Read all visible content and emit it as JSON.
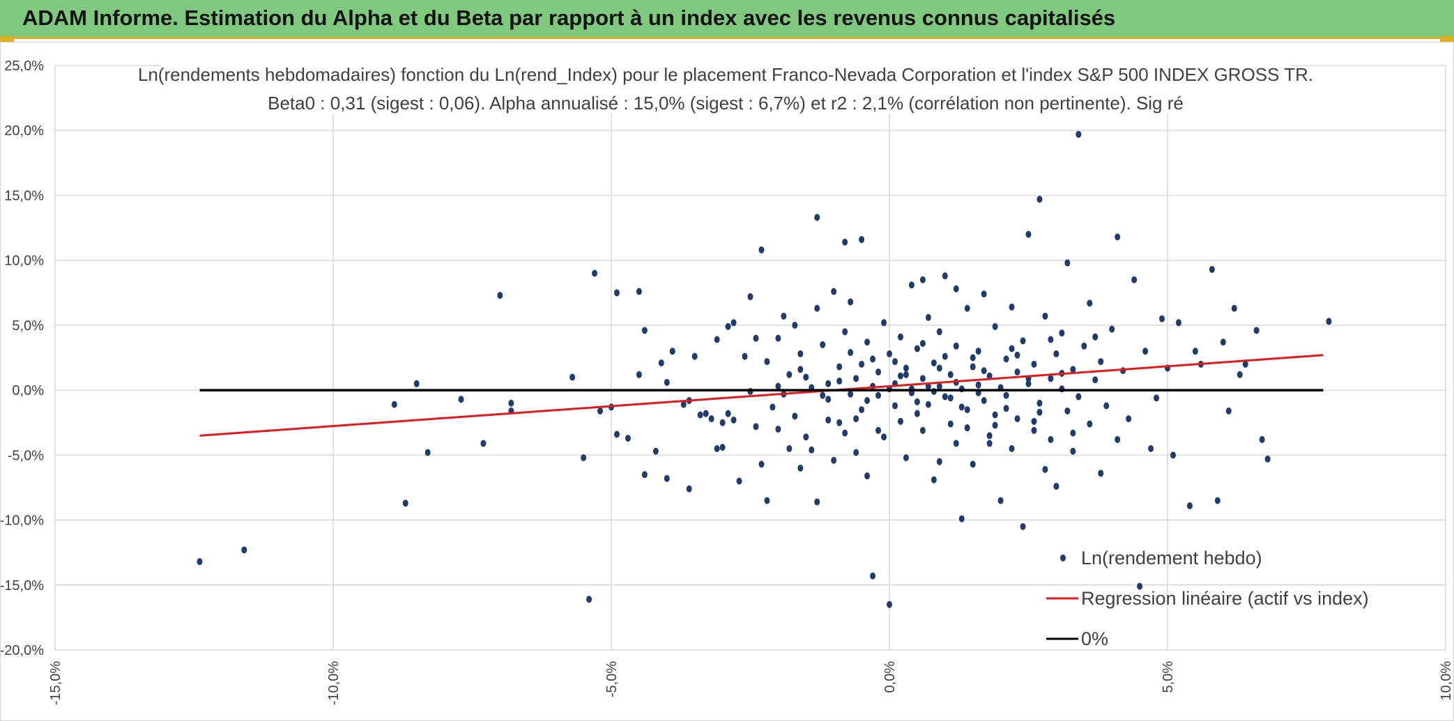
{
  "header": {
    "title": "ADAM Informe. Estimation du Alpha et du Beta par rapport à un index avec les revenus connus capitalisés"
  },
  "colors": {
    "header_bg": "#7ec97e",
    "accent": "#e0b020",
    "points": "#1f3c6e",
    "regression": "#e31a1c",
    "zero_line": "#000000",
    "grid": "#d9d9d9"
  },
  "chart_data": {
    "type": "scatter",
    "title": "Ln(rendements hebdomadaires) fonction du Ln(rend_Index) pour le placement Franco-Nevada Corporation et l'index S&P 500 INDEX GROSS TR.",
    "subtitle": "Beta0 : 0,31 (sigest : 0,06). Alpha annualisé : 15,0% (sigest : 6,7%) et r2 : 2,1% (corrélation non pertinente). Sig ré",
    "xlim": [
      -0.15,
      0.1
    ],
    "ylim": [
      -0.2,
      0.25
    ],
    "x_ticks": [
      -0.15,
      -0.1,
      -0.05,
      0.0,
      0.05,
      0.1
    ],
    "y_ticks": [
      -0.2,
      -0.15,
      -0.1,
      -0.05,
      0.0,
      0.05,
      0.1,
      0.15,
      0.2,
      0.25
    ],
    "x_tick_labels": [
      "-15,0%",
      "-10,0%",
      "-5,0%",
      "0,0%",
      "5,0%",
      "10,0%"
    ],
    "y_tick_labels": [
      "-20,0%",
      "-15,0%",
      "-10,0%",
      "-5,0%",
      "0,0%",
      "5,0%",
      "10,0%",
      "15,0%",
      "20,0%",
      "25,0%"
    ],
    "grid": true,
    "legend_position": "bottom-right",
    "series": [
      {
        "name": "Ln(rendement hebdo)",
        "kind": "points",
        "color": "#1f3c6e",
        "points": [
          [
            -0.124,
            -0.132
          ],
          [
            -0.116,
            -0.123
          ],
          [
            -0.087,
            -0.087
          ],
          [
            -0.089,
            -0.011
          ],
          [
            -0.085,
            0.005
          ],
          [
            -0.083,
            -0.048
          ],
          [
            -0.077,
            -0.007
          ],
          [
            -0.073,
            -0.041
          ],
          [
            -0.07,
            0.073
          ],
          [
            -0.068,
            -0.01
          ],
          [
            -0.068,
            -0.016
          ],
          [
            -0.057,
            0.01
          ],
          [
            -0.055,
            -0.052
          ],
          [
            -0.054,
            -0.161
          ],
          [
            -0.053,
            0.09
          ],
          [
            -0.052,
            -0.016
          ],
          [
            -0.05,
            -0.013
          ],
          [
            -0.049,
            0.075
          ],
          [
            -0.049,
            -0.034
          ],
          [
            -0.047,
            -0.037
          ],
          [
            -0.045,
            0.076
          ],
          [
            -0.045,
            0.012
          ],
          [
            -0.044,
            0.046
          ],
          [
            -0.044,
            -0.065
          ],
          [
            -0.042,
            -0.047
          ],
          [
            -0.041,
            0.021
          ],
          [
            -0.04,
            0.006
          ],
          [
            -0.04,
            -0.068
          ],
          [
            -0.039,
            0.03
          ],
          [
            -0.037,
            -0.011
          ],
          [
            -0.036,
            -0.008
          ],
          [
            -0.036,
            -0.076
          ],
          [
            -0.035,
            0.026
          ],
          [
            -0.034,
            -0.019
          ],
          [
            -0.033,
            -0.018
          ],
          [
            -0.032,
            -0.022
          ],
          [
            -0.031,
            0.039
          ],
          [
            -0.031,
            -0.045
          ],
          [
            -0.03,
            -0.044
          ],
          [
            -0.03,
            -0.025
          ],
          [
            -0.029,
            0.049
          ],
          [
            -0.029,
            -0.018
          ],
          [
            -0.028,
            0.052
          ],
          [
            -0.028,
            -0.023
          ],
          [
            -0.027,
            -0.07
          ],
          [
            -0.026,
            0.026
          ],
          [
            -0.025,
            -0.001
          ],
          [
            -0.025,
            0.072
          ],
          [
            -0.024,
            0.04
          ],
          [
            -0.024,
            -0.028
          ],
          [
            -0.023,
            0.108
          ],
          [
            -0.023,
            -0.057
          ],
          [
            -0.022,
            0.022
          ],
          [
            -0.022,
            -0.085
          ],
          [
            -0.021,
            -0.013
          ],
          [
            -0.02,
            0.003
          ],
          [
            -0.02,
            0.04
          ],
          [
            -0.02,
            -0.03
          ],
          [
            -0.019,
            -0.003
          ],
          [
            -0.018,
            0.012
          ],
          [
            -0.018,
            -0.045
          ],
          [
            -0.017,
            0.05
          ],
          [
            -0.017,
            -0.02
          ],
          [
            -0.016,
            0.028
          ],
          [
            -0.016,
            -0.06
          ],
          [
            -0.015,
            0.01
          ],
          [
            -0.015,
            -0.036
          ],
          [
            -0.014,
            0.002
          ],
          [
            -0.014,
            -0.046
          ],
          [
            -0.013,
            0.063
          ],
          [
            -0.013,
            0.133
          ],
          [
            -0.013,
            -0.086
          ],
          [
            -0.012,
            -0.004
          ],
          [
            -0.012,
            0.035
          ],
          [
            -0.011,
            -0.007
          ],
          [
            -0.011,
            0.005
          ],
          [
            -0.01,
            0.076
          ],
          [
            -0.01,
            -0.054
          ],
          [
            -0.009,
            0.018
          ],
          [
            -0.009,
            -0.025
          ],
          [
            -0.008,
            0.045
          ],
          [
            -0.008,
            -0.033
          ],
          [
            -0.007,
            -0.003
          ],
          [
            -0.007,
            0.068
          ],
          [
            -0.006,
            0.009
          ],
          [
            -0.006,
            -0.048
          ],
          [
            -0.005,
            0.02
          ],
          [
            -0.005,
            -0.015
          ],
          [
            -0.004,
            0.037
          ],
          [
            -0.004,
            -0.066
          ],
          [
            -0.003,
            0.003
          ],
          [
            -0.003,
            -0.143
          ],
          [
            -0.002,
            0.014
          ],
          [
            -0.002,
            -0.004
          ],
          [
            -0.001,
            0.052
          ],
          [
            -0.001,
            -0.036
          ],
          [
            0.0,
            0.001
          ],
          [
            0.0,
            -0.165
          ],
          [
            0.0,
            0.028
          ],
          [
            0.001,
            -0.012
          ],
          [
            0.001,
            0.005
          ],
          [
            0.002,
            0.041
          ],
          [
            0.002,
            -0.024
          ],
          [
            0.003,
            0.017
          ],
          [
            0.003,
            -0.052
          ],
          [
            0.004,
            0.081
          ],
          [
            0.004,
            -0.002
          ],
          [
            0.005,
            0.032
          ],
          [
            0.005,
            -0.018
          ],
          [
            0.006,
            0.009
          ],
          [
            0.006,
            -0.031
          ],
          [
            0.007,
            0.056
          ],
          [
            0.007,
            -0.011
          ],
          [
            0.008,
            0.021
          ],
          [
            0.008,
            -0.069
          ],
          [
            0.009,
            0.003
          ],
          [
            0.009,
            0.045
          ],
          [
            0.01,
            -0.005
          ],
          [
            0.01,
            0.088
          ],
          [
            0.011,
            -0.026
          ],
          [
            0.011,
            0.012
          ],
          [
            0.012,
            -0.041
          ],
          [
            0.012,
            0.034
          ],
          [
            0.013,
            0.001
          ],
          [
            0.013,
            -0.099
          ],
          [
            0.014,
            0.063
          ],
          [
            0.014,
            -0.015
          ],
          [
            0.015,
            0.018
          ],
          [
            0.015,
            -0.057
          ],
          [
            0.016,
            0.004
          ],
          [
            0.016,
            0.03
          ],
          [
            0.017,
            -0.008
          ],
          [
            0.017,
            0.074
          ],
          [
            0.018,
            -0.035
          ],
          [
            0.018,
            0.011
          ],
          [
            0.019,
            -0.019
          ],
          [
            0.019,
            0.049
          ],
          [
            0.02,
            0.002
          ],
          [
            0.02,
            -0.085
          ],
          [
            0.021,
            0.024
          ],
          [
            0.021,
            -0.004
          ],
          [
            0.022,
            0.064
          ],
          [
            0.022,
            -0.045
          ],
          [
            0.023,
            0.014
          ],
          [
            0.023,
            -0.022
          ],
          [
            0.024,
            0.038
          ],
          [
            0.024,
            -0.105
          ],
          [
            0.025,
            0.005
          ],
          [
            0.025,
            0.12
          ],
          [
            0.026,
            -0.031
          ],
          [
            0.026,
            0.02
          ],
          [
            0.027,
            -0.01
          ],
          [
            0.027,
            0.147
          ],
          [
            0.028,
            0.057
          ],
          [
            0.028,
            -0.061
          ],
          [
            0.029,
            0.009
          ],
          [
            0.029,
            -0.038
          ],
          [
            0.03,
            0.028
          ],
          [
            0.03,
            -0.074
          ],
          [
            0.031,
            0.001
          ],
          [
            0.031,
            0.044
          ],
          [
            0.032,
            -0.016
          ],
          [
            0.032,
            0.098
          ],
          [
            0.033,
            0.016
          ],
          [
            0.033,
            -0.047
          ],
          [
            0.034,
            0.197
          ],
          [
            0.034,
            -0.005
          ],
          [
            0.035,
            0.034
          ],
          [
            0.036,
            -0.026
          ],
          [
            0.036,
            0.067
          ],
          [
            0.037,
            0.008
          ],
          [
            0.038,
            -0.064
          ],
          [
            0.038,
            0.022
          ],
          [
            0.039,
            -0.012
          ],
          [
            0.04,
            0.047
          ],
          [
            0.041,
            -0.038
          ],
          [
            0.041,
            0.118
          ],
          [
            0.042,
            0.015
          ],
          [
            0.043,
            -0.022
          ],
          [
            0.044,
            0.085
          ],
          [
            0.045,
            -0.151
          ],
          [
            0.046,
            0.03
          ],
          [
            0.047,
            -0.045
          ],
          [
            0.048,
            -0.006
          ],
          [
            0.049,
            0.055
          ],
          [
            0.05,
            0.017
          ],
          [
            0.051,
            -0.05
          ],
          [
            0.052,
            0.052
          ],
          [
            0.054,
            -0.089
          ],
          [
            0.055,
            0.03
          ],
          [
            0.056,
            0.02
          ],
          [
            0.058,
            0.093
          ],
          [
            0.059,
            -0.085
          ],
          [
            0.06,
            0.037
          ],
          [
            0.061,
            -0.016
          ],
          [
            0.062,
            0.063
          ],
          [
            0.063,
            0.012
          ],
          [
            0.064,
            0.02
          ],
          [
            0.066,
            0.046
          ],
          [
            0.067,
            -0.038
          ],
          [
            0.068,
            -0.053
          ],
          [
            0.079,
            0.053
          ],
          [
            -0.011,
            -0.023
          ],
          [
            -0.006,
            -0.022
          ],
          [
            -0.002,
            -0.031
          ],
          [
            0.002,
            0.011
          ],
          [
            0.006,
            0.036
          ],
          [
            0.011,
            -0.006
          ],
          [
            0.015,
            0.025
          ],
          [
            0.019,
            -0.027
          ],
          [
            0.023,
            0.027
          ],
          [
            0.027,
            -0.017
          ],
          [
            0.031,
            0.013
          ],
          [
            -0.009,
            0.007
          ],
          [
            -0.004,
            -0.008
          ],
          [
            0.001,
            0.022
          ],
          [
            0.005,
            -0.009
          ],
          [
            0.009,
            0.017
          ],
          [
            0.013,
            -0.013
          ],
          [
            0.017,
            0.015
          ],
          [
            0.021,
            -0.014
          ],
          [
            0.025,
            0.009
          ],
          [
            0.004,
            0.001
          ],
          [
            0.008,
            -0.001
          ],
          [
            0.012,
            0.006
          ],
          [
            0.016,
            -0.002
          ],
          [
            0.003,
            0.012
          ],
          [
            0.007,
            0.003
          ],
          [
            -0.003,
            0.024
          ],
          [
            0.01,
            0.026
          ],
          [
            0.014,
            -0.029
          ],
          [
            0.018,
            -0.041
          ],
          [
            0.022,
            0.032
          ],
          [
            -0.007,
            0.029
          ],
          [
            -0.016,
            0.016
          ],
          [
            0.026,
            -0.024
          ],
          [
            0.029,
            0.039
          ],
          [
            0.033,
            -0.033
          ],
          [
            0.037,
            0.041
          ],
          [
            -0.019,
            0.057
          ],
          [
            -0.008,
            0.114
          ],
          [
            -0.005,
            0.116
          ],
          [
            0.006,
            0.085
          ],
          [
            0.009,
            -0.055
          ],
          [
            0.012,
            0.078
          ]
        ]
      },
      {
        "name": "Regression linéaire (actif vs index)",
        "kind": "line",
        "color": "#e31a1c",
        "points": [
          [
            -0.124,
            -0.035
          ],
          [
            0.078,
            0.027
          ]
        ]
      },
      {
        "name": "0%",
        "kind": "line",
        "color": "#000000",
        "points": [
          [
            -0.124,
            0.0
          ],
          [
            0.078,
            0.0
          ]
        ]
      }
    ]
  }
}
